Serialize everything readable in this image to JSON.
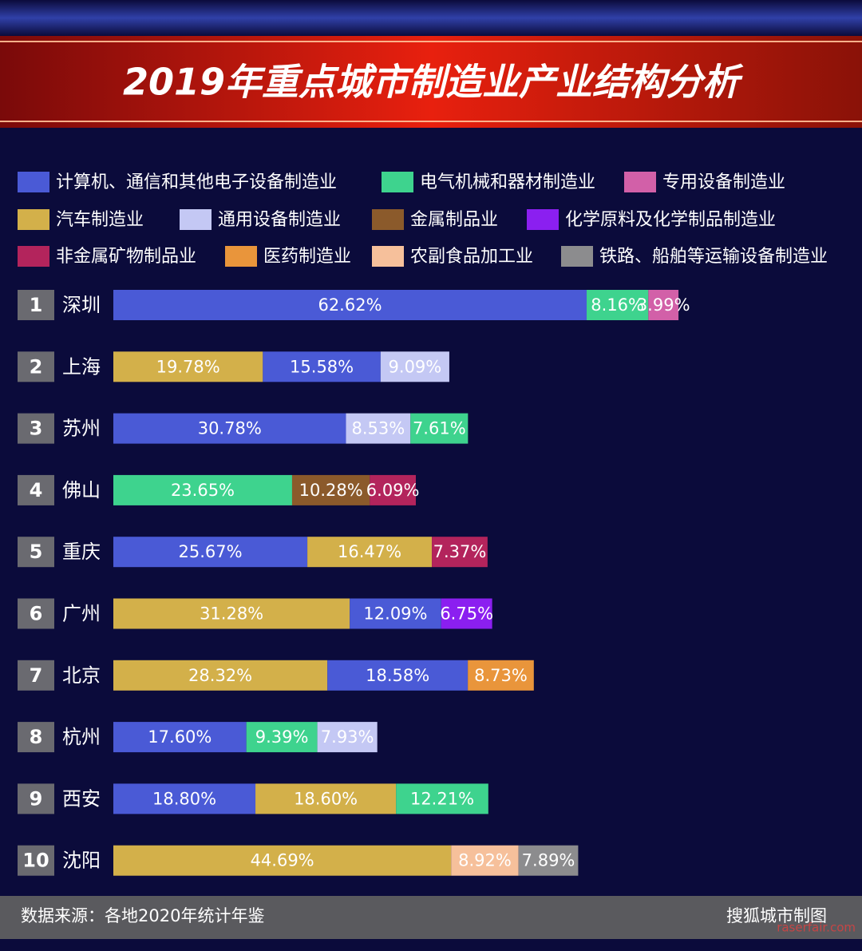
{
  "chart_data": {
    "type": "stacked-bar-horizontal",
    "title": "2019年重点城市制造业产业结构分析",
    "ranks": [
      "1",
      "2",
      "3",
      "4",
      "5",
      "6",
      "7",
      "8",
      "9",
      "10"
    ],
    "categories": [
      "深圳",
      "上海",
      "苏州",
      "佛山",
      "重庆",
      "广州",
      "北京",
      "杭州",
      "西安",
      "沈阳"
    ],
    "series": [
      {
        "name": "计算机、通信和其他电子设备制造业",
        "color": "#4a5ad6",
        "values": [
          62.62,
          15.58,
          30.78,
          null,
          25.67,
          12.09,
          18.58,
          17.6,
          18.8,
          null
        ],
        "value_labels": [
          "62.62%",
          "15.58%",
          "30.78%",
          null,
          "25.67%",
          "12.09%",
          "18.58%",
          "17.60%",
          "18.80%",
          null
        ]
      },
      {
        "name": "电气机械和器材制造业",
        "color": "#3ed38e",
        "values": [
          8.16,
          null,
          7.61,
          23.65,
          null,
          null,
          null,
          9.39,
          12.21,
          null
        ],
        "value_labels": [
          "8.16%",
          null,
          "7.61%",
          "23.65%",
          null,
          null,
          null,
          "9.39%",
          "12.21%",
          null
        ]
      },
      {
        "name": "专用设备制造业",
        "color": "#d260a8",
        "values": [
          3.99,
          null,
          null,
          null,
          null,
          null,
          null,
          null,
          null,
          null
        ],
        "value_labels": [
          "3.99%",
          null,
          null,
          null,
          null,
          null,
          null,
          null,
          null,
          null
        ]
      },
      {
        "name": "汽车制造业",
        "color": "#d3b04a",
        "values": [
          null,
          19.78,
          null,
          null,
          16.47,
          31.28,
          28.32,
          null,
          18.6,
          44.69
        ],
        "value_labels": [
          null,
          "19.78%",
          null,
          null,
          "16.47%",
          "31.28%",
          "28.32%",
          null,
          "18.60%",
          "44.69%"
        ]
      },
      {
        "name": "通用设备制造业",
        "color": "#c4c8f4",
        "values": [
          null,
          9.09,
          8.53,
          null,
          null,
          null,
          null,
          7.93,
          null,
          null
        ],
        "value_labels": [
          null,
          "9.09%",
          "8.53%",
          null,
          null,
          null,
          null,
          "7.93%",
          null,
          null
        ]
      },
      {
        "name": "金属制品业",
        "color": "#8b5a2b",
        "values": [
          null,
          null,
          null,
          10.28,
          null,
          null,
          null,
          null,
          null,
          null
        ],
        "value_labels": [
          null,
          null,
          null,
          "10.28%",
          null,
          null,
          null,
          null,
          null,
          null
        ]
      },
      {
        "name": "化学原料及化学制品制造业",
        "color": "#8b1ff0",
        "values": [
          null,
          null,
          null,
          null,
          null,
          6.75,
          null,
          null,
          null,
          null
        ],
        "value_labels": [
          null,
          null,
          null,
          null,
          null,
          "6.75%",
          null,
          null,
          null,
          null
        ]
      },
      {
        "name": "非金属矿物制品业",
        "color": "#b3245c",
        "values": [
          null,
          null,
          null,
          6.09,
          7.37,
          null,
          null,
          null,
          null,
          null
        ],
        "value_labels": [
          null,
          null,
          null,
          "6.09%",
          "7.37%",
          null,
          null,
          null,
          null,
          null
        ]
      },
      {
        "name": "医药制造业",
        "color": "#e9953b",
        "values": [
          null,
          null,
          null,
          null,
          null,
          null,
          8.73,
          null,
          null,
          null
        ],
        "value_labels": [
          null,
          null,
          null,
          null,
          null,
          null,
          "8.73%",
          null,
          null,
          null
        ]
      },
      {
        "name": "农副食品加工业",
        "color": "#f6c09b",
        "values": [
          null,
          null,
          null,
          null,
          null,
          null,
          null,
          null,
          null,
          8.92
        ],
        "value_labels": [
          null,
          null,
          null,
          null,
          null,
          null,
          null,
          null,
          null,
          "8.92%"
        ]
      },
      {
        "name": "铁路、船舶等运输设备制造业",
        "color": "#8c8c8e",
        "values": [
          null,
          null,
          null,
          null,
          null,
          null,
          null,
          null,
          null,
          7.89
        ],
        "value_labels": [
          null,
          null,
          null,
          null,
          null,
          null,
          null,
          null,
          null,
          "7.89%"
        ]
      }
    ],
    "source": "数据来源：各地2020年统计年鉴",
    "credit": "搜狐城市制图",
    "watermark": "raserfair.com"
  }
}
